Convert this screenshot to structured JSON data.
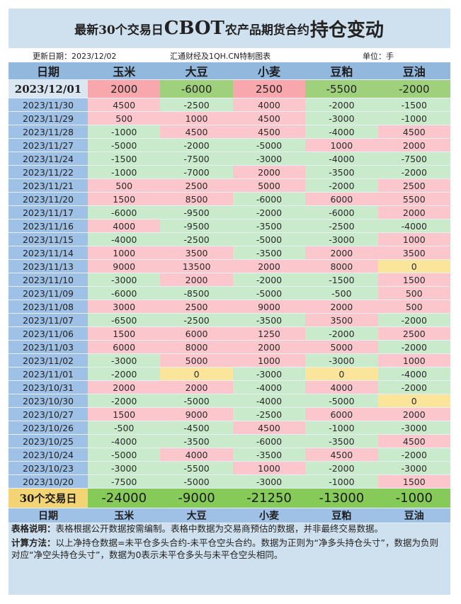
{
  "title": {
    "part1": "最新30个交易日",
    "part2": "CBOT",
    "part3": "农产品期货合约",
    "part4": "持仓变动"
  },
  "meta": {
    "update": "更新日期：2023/12/02",
    "source": "汇通财经及1QH.CN特制图表",
    "unit": "单位：手"
  },
  "header": [
    "日期",
    "玉米",
    "大豆",
    "小麦",
    "豆粕",
    "豆油"
  ],
  "footer": [
    "日期",
    "玉米",
    "大豆",
    "小麦",
    "豆粕",
    "豆油"
  ],
  "colors": {
    "positive": "#fbc6cc",
    "negative": "#c9ebcb",
    "zero": "#fbe59b",
    "total": "#86cb5a",
    "date": "#9fc1e5",
    "header": "#92b8dd"
  },
  "notes": {
    "label1": "表格说明：",
    "text1": "表格根据公开数据按需编制。表格中数据为交易商预估的数据，并非最终交易数据。",
    "label2": "计算方法：",
    "text2": "以上净持仓数据=未平仓多头合约-未平仓空头合约。数据为正则为“净多头持仓头寸”，数据为负则对应“净空头持仓头寸”，数据为0表示未平仓多头与未平仓空头相同。"
  },
  "chart_data": {
    "type": "table",
    "columns": [
      "玉米",
      "大豆",
      "小麦",
      "豆粕",
      "豆油"
    ],
    "latest": {
      "date": "2023/12/01",
      "values": [
        "2000",
        "-6000",
        "2500",
        "-5500",
        "-2000"
      ]
    },
    "rows": [
      {
        "date": "2023/11/30",
        "values": [
          "4500",
          "-2500",
          "4000",
          "-2000",
          "-1500"
        ]
      },
      {
        "date": "2023/11/29",
        "values": [
          "500",
          "1000",
          "4500",
          "-3000",
          "-1000"
        ]
      },
      {
        "date": "2023/11/28",
        "values": [
          "-1000",
          "4500",
          "4500",
          "-4000",
          "4500"
        ]
      },
      {
        "date": "2023/11/27",
        "values": [
          "-5000",
          "-2000",
          "-5000",
          "1000",
          "2000"
        ]
      },
      {
        "date": "2023/11/24",
        "values": [
          "-1500",
          "-7500",
          "-3000",
          "-4000",
          "-7500"
        ]
      },
      {
        "date": "2023/11/22",
        "values": [
          "-1000",
          "-7000",
          "2000",
          "-3500",
          "-2000"
        ]
      },
      {
        "date": "2023/11/21",
        "values": [
          "500",
          "2500",
          "5000",
          "-2000",
          "2500"
        ]
      },
      {
        "date": "2023/11/20",
        "values": [
          "1500",
          "8500",
          "-6000",
          "6000",
          "5500"
        ]
      },
      {
        "date": "2023/11/17",
        "values": [
          "-6000",
          "-9500",
          "-2000",
          "-6000",
          "2000"
        ]
      },
      {
        "date": "2023/11/16",
        "values": [
          "4000",
          "-9500",
          "-3500",
          "-2500",
          "-4000"
        ]
      },
      {
        "date": "2023/11/15",
        "values": [
          "-4000",
          "-2500",
          "-5000",
          "-3000",
          "1000"
        ]
      },
      {
        "date": "2023/11/14",
        "values": [
          "1000",
          "3500",
          "-3500",
          "2000",
          "3500"
        ]
      },
      {
        "date": "2023/11/13",
        "values": [
          "9000",
          "13500",
          "2000",
          "8000",
          "0"
        ]
      },
      {
        "date": "2023/11/10",
        "values": [
          "-3000",
          "2000",
          "-2000",
          "-1500",
          "1500"
        ]
      },
      {
        "date": "2023/11/09",
        "values": [
          "-6000",
          "-8500",
          "-5000",
          "-500",
          "500"
        ]
      },
      {
        "date": "2023/11/08",
        "values": [
          "3000",
          "2500",
          "9000",
          "2000",
          "500"
        ]
      },
      {
        "date": "2023/11/07",
        "values": [
          "-6500",
          "-2500",
          "-3500",
          "3500",
          "-2000"
        ]
      },
      {
        "date": "2023/11/06",
        "values": [
          "1500",
          "6000",
          "1250",
          "-2000",
          "2500"
        ]
      },
      {
        "date": "2023/11/03",
        "values": [
          "6000",
          "8000",
          "2000",
          "5000",
          "-2000"
        ]
      },
      {
        "date": "2023/11/02",
        "values": [
          "-3000",
          "5000",
          "1000",
          "-3000",
          "1000"
        ]
      },
      {
        "date": "2023/11/01",
        "values": [
          "-2000",
          "0",
          "-3000",
          "0",
          "-4000"
        ]
      },
      {
        "date": "2023/10/31",
        "values": [
          "2000",
          "2000",
          "-4000",
          "4000",
          "-2000"
        ]
      },
      {
        "date": "2023/10/30",
        "values": [
          "-2000",
          "-5000",
          "-4000",
          "-5000",
          "0"
        ]
      },
      {
        "date": "2023/10/27",
        "values": [
          "1500",
          "9000",
          "-2500",
          "6000",
          "2000"
        ]
      },
      {
        "date": "2023/10/26",
        "values": [
          "-500",
          "-4500",
          "4500",
          "-1000",
          "-3000"
        ]
      },
      {
        "date": "2023/10/25",
        "values": [
          "-4000",
          "-3500",
          "-6000",
          "-3500",
          "4500"
        ]
      },
      {
        "date": "2023/10/24",
        "values": [
          "-5000",
          "4000",
          "-3500",
          "4500",
          "-2000"
        ]
      },
      {
        "date": "2023/10/23",
        "values": [
          "-3000",
          "-5500",
          "1000",
          "-2000",
          "-3000"
        ]
      },
      {
        "date": "2023/10/20",
        "values": [
          "-7500",
          "-5000",
          "-3000",
          "-1000",
          "1500"
        ]
      }
    ],
    "total": {
      "label": "30个交易日",
      "values": [
        "-24000",
        "-9000",
        "-21250",
        "-13000",
        "-1000"
      ]
    }
  }
}
